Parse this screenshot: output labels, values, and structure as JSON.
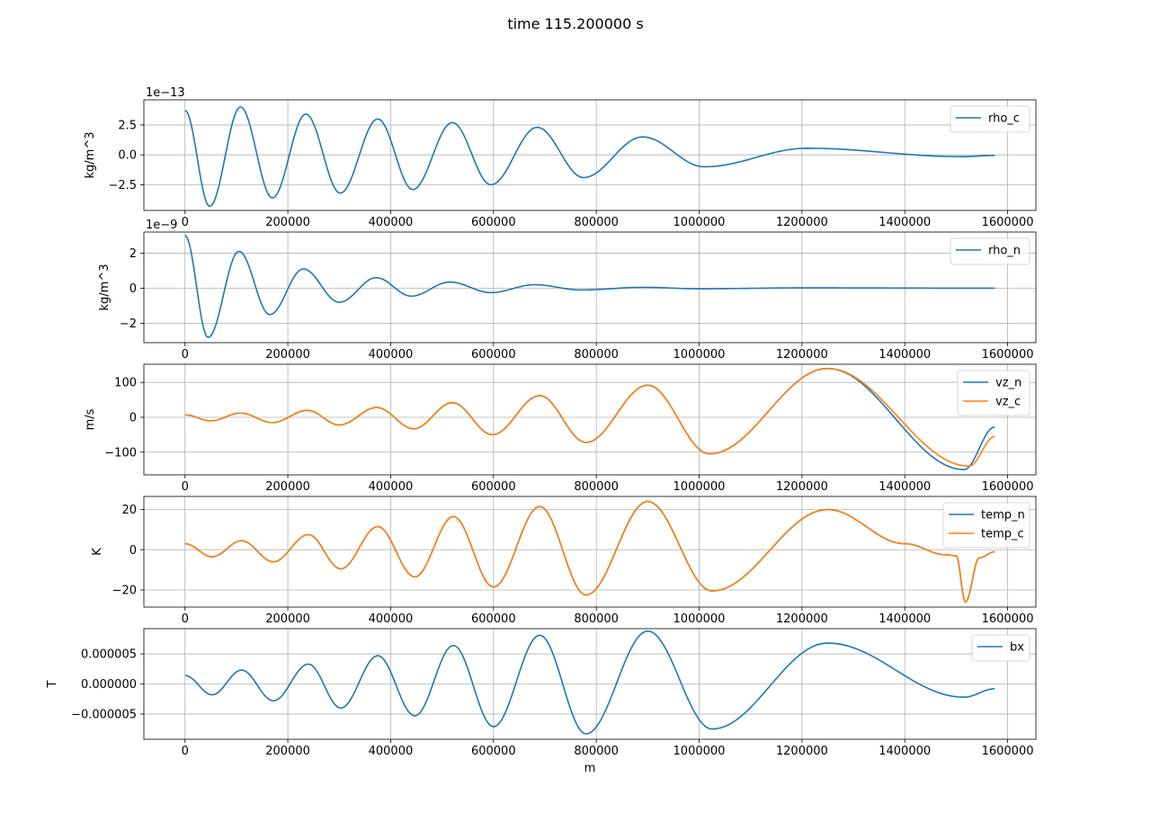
{
  "figure": {
    "suptitle": "time 115.200000 s"
  },
  "colors": {
    "series_blue": "#1f77b4",
    "series_orange": "#ff7f0e",
    "grid": "#b0b0b0"
  },
  "chart_data": [
    {
      "type": "line",
      "ylabel": "kg/m^3",
      "xlabel": "",
      "offset_text": "1e−13",
      "xlim": [
        -80000,
        1655000
      ],
      "ylim": [
        -4.65,
        4.6
      ],
      "xticks": [
        0,
        200000,
        400000,
        600000,
        800000,
        1000000,
        1200000,
        1400000,
        1600000
      ],
      "yticks": [
        {
          "v": -2.5,
          "label": "−2.5"
        },
        {
          "v": 0,
          "label": "0.0"
        },
        {
          "v": 2.5,
          "label": "2.5"
        }
      ],
      "grid": true,
      "legend_position": "top-right",
      "series": [
        {
          "name": "rho_c",
          "color": "#1f77b4",
          "x": [
            0,
            48000,
            108000,
            170000,
            235000,
            302000,
            375000,
            443000,
            520000,
            595000,
            685000,
            775000,
            890000,
            1010000,
            1210000,
            1510000,
            1575000
          ],
          "y": [
            3.7,
            -4.3,
            4.0,
            -3.6,
            3.4,
            -3.2,
            3.0,
            -2.9,
            2.7,
            -2.5,
            2.3,
            -1.9,
            1.5,
            -1.0,
            0.55,
            -0.15,
            -0.05
          ]
        }
      ]
    },
    {
      "type": "line",
      "ylabel": "kg/m^3",
      "xlabel": "",
      "offset_text": "1e−9",
      "xlim": [
        -80000,
        1655000
      ],
      "ylim": [
        -3.1,
        3.2
      ],
      "xticks": [
        0,
        200000,
        400000,
        600000,
        800000,
        1000000,
        1200000,
        1400000,
        1600000
      ],
      "yticks": [
        {
          "v": -2,
          "label": "−2"
        },
        {
          "v": 0,
          "label": "0"
        },
        {
          "v": 2,
          "label": "2"
        }
      ],
      "grid": true,
      "legend_position": "top-right",
      "series": [
        {
          "name": "rho_n",
          "color": "#1f77b4",
          "x": [
            0,
            45000,
            105000,
            165000,
            230000,
            300000,
            372000,
            440000,
            515000,
            595000,
            680000,
            770000,
            890000,
            1000000,
            1200000,
            1575000
          ],
          "y": [
            3.0,
            -2.8,
            2.1,
            -1.5,
            1.1,
            -0.8,
            0.6,
            -0.45,
            0.35,
            -0.25,
            0.2,
            -0.1,
            0.05,
            -0.03,
            0.02,
            0.0
          ]
        }
      ]
    },
    {
      "type": "line",
      "ylabel": "m/s",
      "xlabel": "",
      "offset_text": "",
      "xlim": [
        -80000,
        1655000
      ],
      "ylim": [
        -165,
        152
      ],
      "xticks": [
        0,
        200000,
        400000,
        600000,
        800000,
        1000000,
        1200000,
        1400000,
        1600000
      ],
      "yticks": [
        {
          "v": -100,
          "label": "−100"
        },
        {
          "v": 0,
          "label": "0"
        },
        {
          "v": 100,
          "label": "100"
        }
      ],
      "grid": true,
      "legend_position": "top-right",
      "series": [
        {
          "name": "vz_n",
          "color": "#1f77b4",
          "x": [
            0,
            50000,
            108000,
            170000,
            238000,
            300000,
            373000,
            445000,
            520000,
            598000,
            690000,
            780000,
            900000,
            1020000,
            1250000,
            1515000,
            1575000
          ],
          "y": [
            7,
            -10,
            12,
            -15,
            20,
            -22,
            28,
            -33,
            42,
            -50,
            62,
            -72,
            92,
            -105,
            140,
            -150,
            -28
          ]
        },
        {
          "name": "vz_c",
          "color": "#ff7f0e",
          "x": [
            0,
            50000,
            108000,
            170000,
            238000,
            300000,
            373000,
            445000,
            520000,
            598000,
            690000,
            780000,
            900000,
            1020000,
            1250000,
            1525000,
            1575000
          ],
          "y": [
            7,
            -10,
            12,
            -15,
            20,
            -22,
            28,
            -33,
            42,
            -50,
            62,
            -72,
            92,
            -105,
            140,
            -140,
            -55
          ]
        }
      ]
    },
    {
      "type": "line",
      "ylabel": "K",
      "xlabel": "",
      "offset_text": "",
      "xlim": [
        -80000,
        1655000
      ],
      "ylim": [
        -28.5,
        26.5
      ],
      "xticks": [
        0,
        200000,
        400000,
        600000,
        800000,
        1000000,
        1200000,
        1400000,
        1600000
      ],
      "yticks": [
        {
          "v": -20,
          "label": "−20"
        },
        {
          "v": 0,
          "label": "0"
        },
        {
          "v": 20,
          "label": "20"
        }
      ],
      "grid": true,
      "legend_position": "top-right",
      "series": [
        {
          "name": "temp_n",
          "color": "#1f77b4",
          "x": [
            0,
            53000,
            110000,
            172000,
            240000,
            303000,
            375000,
            447000,
            522000,
            600000,
            690000,
            780000,
            900000,
            1025000,
            1250000,
            1400000,
            1480000,
            1500000,
            1518000,
            1545000,
            1575000
          ],
          "y": [
            3,
            -3.5,
            4.5,
            -6,
            7.5,
            -9.5,
            11.5,
            -13.5,
            16.5,
            -18.5,
            21.5,
            -22.5,
            24,
            -20.5,
            20,
            3,
            -2.5,
            -3,
            -26,
            -4,
            -1
          ]
        },
        {
          "name": "temp_c",
          "color": "#ff7f0e",
          "x": [
            0,
            53000,
            110000,
            172000,
            240000,
            303000,
            375000,
            447000,
            522000,
            600000,
            690000,
            780000,
            900000,
            1025000,
            1250000,
            1400000,
            1480000,
            1500000,
            1518000,
            1545000,
            1575000
          ],
          "y": [
            3,
            -3.5,
            4.5,
            -6,
            7.5,
            -9.5,
            11.5,
            -13.5,
            16.5,
            -18.5,
            21.5,
            -22.5,
            24,
            -20.5,
            20,
            3,
            -2.5,
            -3,
            -26,
            -4,
            -1
          ]
        }
      ]
    },
    {
      "type": "line",
      "ylabel": "T",
      "xlabel": "m",
      "offset_text": "",
      "xlim": [
        -80000,
        1655000
      ],
      "ylim": [
        -9.2e-06,
        9.2e-06
      ],
      "xticks": [
        0,
        200000,
        400000,
        600000,
        800000,
        1000000,
        1200000,
        1400000,
        1600000
      ],
      "yticks": [
        {
          "v": -5e-06,
          "label": "−0.000005"
        },
        {
          "v": 0,
          "label": "0.000000"
        },
        {
          "v": 5e-06,
          "label": "0.000005"
        }
      ],
      "grid": true,
      "legend_position": "top-right",
      "series": [
        {
          "name": "bx",
          "color": "#1f77b4",
          "x": [
            0,
            53000,
            110000,
            172000,
            240000,
            303000,
            375000,
            447000,
            522000,
            600000,
            690000,
            780000,
            900000,
            1025000,
            1250000,
            1515000,
            1575000
          ],
          "y": [
            1.4e-06,
            -1.8e-06,
            2.3e-06,
            -2.8e-06,
            3.3e-06,
            -4e-06,
            4.7e-06,
            -5.3e-06,
            6.4e-06,
            -7.1e-06,
            8.1e-06,
            -8.3e-06,
            8.8e-06,
            -7.5e-06,
            6.8e-06,
            -2.2e-06,
            -8e-07
          ]
        }
      ]
    }
  ]
}
